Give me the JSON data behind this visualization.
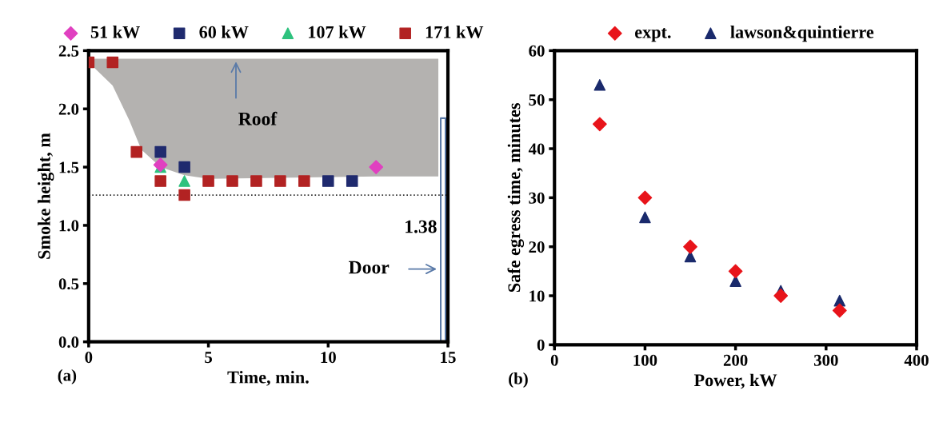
{
  "chart_data": [
    {
      "type": "scatter",
      "xlabel": "Time, min.",
      "ylabel": "Smoke height, m",
      "legend": "top",
      "grid": false,
      "xlim": [
        0,
        15
      ],
      "xticks": [
        0,
        5,
        10,
        15
      ],
      "ylim": [
        0,
        2.5
      ],
      "yticks": [
        {
          "value": 0,
          "label": "0.0"
        },
        {
          "value": 0.5,
          "label": "0.5"
        },
        {
          "value": 1,
          "label": "1.0"
        },
        {
          "value": 1.5,
          "label": "1.5"
        },
        {
          "value": 2,
          "label": "2.0"
        },
        {
          "value": 2.5,
          "label": "2.5"
        }
      ],
      "series": [
        {
          "name": "51 kW",
          "color": "#e040c0",
          "marker": "diamond",
          "x": [
            3,
            12
          ],
          "values": [
            1.52,
            1.5
          ]
        },
        {
          "name": "60 kW",
          "color": "#1f2a6e",
          "marker": "square",
          "x": [
            3,
            4,
            10,
            11
          ],
          "values": [
            1.63,
            1.5,
            1.38,
            1.38
          ]
        },
        {
          "name": "107 kW",
          "color": "#2ec27e",
          "marker": "triangle",
          "x": [
            3,
            4
          ],
          "values": [
            1.5,
            1.38
          ]
        },
        {
          "name": "171 kW",
          "color": "#b22222",
          "marker": "square",
          "x": [
            0,
            1,
            2,
            3,
            4,
            5,
            6,
            7,
            8,
            9
          ],
          "values": [
            2.4,
            2.4,
            1.63,
            1.38,
            1.26,
            1.38,
            1.38,
            1.38,
            1.38,
            1.38
          ]
        }
      ],
      "ref_lines": [
        {
          "axis": "y",
          "value": 1.26,
          "color": "#333333",
          "line_style": "dotted"
        }
      ],
      "annotations": [
        "Roof",
        "Door",
        "1.38",
        "(a)"
      ]
    },
    {
      "type": "scatter",
      "xlabel": "Power, kW",
      "ylabel": "Safe egress time, minutes",
      "legend": "top",
      "grid": false,
      "xlim": [
        0,
        400
      ],
      "xticks": [
        0,
        100,
        200,
        300,
        400
      ],
      "ylim": [
        0,
        60
      ],
      "yticks": [
        0,
        10,
        20,
        30,
        40,
        50,
        60
      ],
      "series": [
        {
          "name": "expt.",
          "color": "#e8141a",
          "marker": "diamond",
          "x": [
            50,
            100,
            150,
            200,
            250,
            315
          ],
          "values": [
            45,
            30,
            20,
            15,
            10,
            7
          ]
        },
        {
          "name": "lawson&quintierre",
          "color": "#1a2a6c",
          "marker": "triangle",
          "x": [
            50,
            100,
            150,
            200,
            250,
            315
          ],
          "values": [
            53,
            26,
            18,
            13,
            11,
            9
          ]
        }
      ],
      "annotations": [
        "(b)"
      ]
    }
  ]
}
